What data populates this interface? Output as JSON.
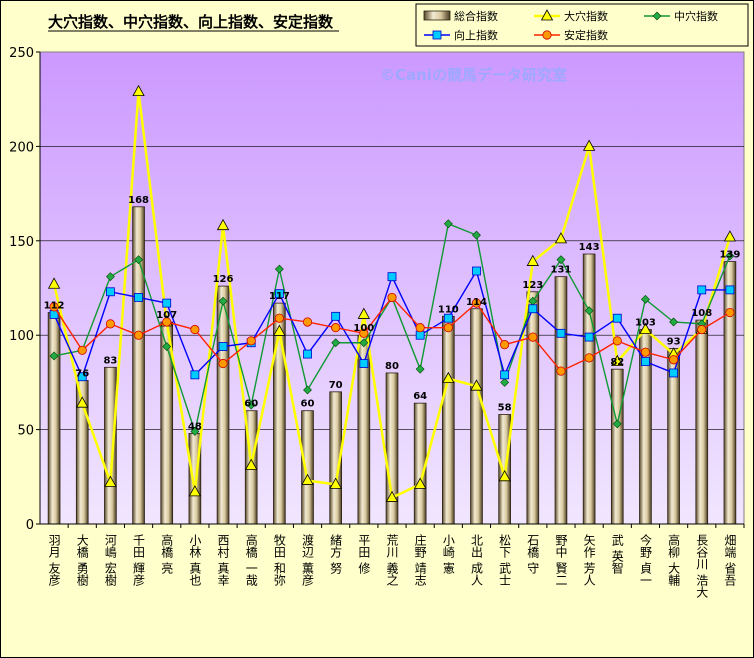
{
  "chart_data": {
    "type": "bar",
    "title": "大穴指数、中穴指数、向上指数、安定指数",
    "watermark": "©Caniの競馬データ研究室",
    "ylim": [
      0,
      250
    ],
    "yticks": [
      0,
      50,
      100,
      150,
      200,
      250
    ],
    "grid": true,
    "legend_position": "top-right",
    "categories": [
      "羽月 友彦",
      "大橋 勇樹",
      "河嶋 宏樹",
      "千田 輝彦",
      "高橋 亮",
      "小林 真也",
      "西村 真幸",
      "高橋 一哉",
      "牧田 和弥",
      "渡辺 薫彦",
      "緒方 努",
      "平田 修",
      "荒川 義之",
      "庄野 靖志",
      "小崎 憲",
      "北出 成人",
      "松下 武士",
      "石橋 守",
      "野中 賢二",
      "矢作 芳人",
      "武 英智",
      "今野 貞一",
      "高柳 大輔",
      "長谷川 浩大",
      "畑端 省吾"
    ],
    "series": [
      {
        "name": "総合指数",
        "kind": "bar",
        "color": "#c9bb8e",
        "values": [
          112,
          76,
          83,
          168,
          107,
          48,
          126,
          60,
          117,
          60,
          70,
          100,
          80,
          64,
          110,
          114,
          58,
          123,
          131,
          143,
          82,
          103,
          93,
          108,
          139
        ]
      },
      {
        "name": "大穴指数",
        "kind": "line",
        "color": "#ffff00",
        "marker": "triangle",
        "values": [
          127,
          64,
          22,
          229,
          107,
          17,
          158,
          31,
          102,
          23,
          21,
          111,
          14,
          21,
          77,
          73,
          25,
          139,
          151,
          200,
          86,
          103,
          90,
          103,
          152
        ]
      },
      {
        "name": "中穴指数",
        "kind": "line",
        "color": "#119933",
        "marker": "diamond",
        "values": [
          89,
          92,
          131,
          140,
          94,
          49,
          118,
          63,
          135,
          71,
          96,
          96,
          120,
          82,
          159,
          153,
          75,
          118,
          140,
          113,
          53,
          119,
          107,
          106,
          142
        ]
      },
      {
        "name": "向上指数",
        "kind": "line",
        "color": "#0000ff",
        "marker": "square",
        "values": [
          111,
          78,
          123,
          120,
          117,
          79,
          94,
          96,
          122,
          90,
          110,
          85,
          131,
          100,
          109,
          134,
          79,
          114,
          101,
          99,
          109,
          86,
          80,
          124,
          124
        ]
      },
      {
        "name": "安定指数",
        "kind": "line",
        "color": "#ff2200",
        "marker": "circle",
        "values": [
          115,
          92,
          106,
          100,
          107,
          103,
          85,
          97,
          109,
          107,
          104,
          101,
          120,
          104,
          104,
          117,
          95,
          99,
          81,
          88,
          97,
          91,
          87,
          103,
          112
        ]
      }
    ]
  }
}
